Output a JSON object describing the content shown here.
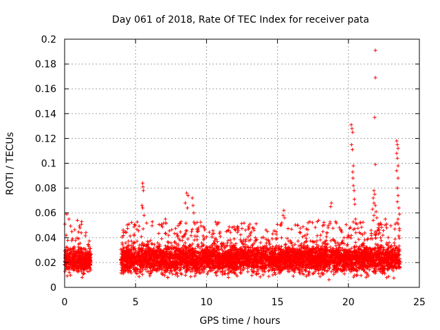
{
  "chart_data": {
    "type": "scatter",
    "title": "Day 061 of 2018, Rate Of TEC Index for receiver pata",
    "xlabel": "GPS time / hours",
    "ylabel": "ROTI / TECUs",
    "xlim": [
      0,
      25
    ],
    "ylim": [
      0,
      0.2
    ],
    "xticks": [
      0,
      5,
      10,
      15,
      20,
      25
    ],
    "yticks": [
      0,
      0.02,
      0.04,
      0.06,
      0.08,
      0.1,
      0.12,
      0.14,
      0.16,
      0.18,
      0.2
    ],
    "xtick_labels": [
      "0",
      "5",
      "10",
      "15",
      "20",
      "25"
    ],
    "ytick_labels": [
      "0",
      "0.02",
      "0.04",
      "0.06",
      "0.08",
      "0.1",
      "0.12",
      "0.14",
      "0.16",
      "0.18",
      "0.2"
    ],
    "grid": true,
    "marker": "+",
    "color": "#ff0000",
    "series": [
      {
        "name": "ROTI",
        "segments": [
          {
            "start": 0.0,
            "end": 1.85,
            "base": 0.022,
            "spread": 0.012
          },
          {
            "start": 3.95,
            "end": 23.65,
            "base": 0.023,
            "spread": 0.013
          }
        ],
        "peaks": [
          {
            "x": 0.15,
            "y": 0.059
          },
          {
            "x": 0.3,
            "y": 0.055
          },
          {
            "x": 0.9,
            "y": 0.054
          },
          {
            "x": 1.2,
            "y": 0.053
          },
          {
            "x": 5.5,
            "y": 0.084
          },
          {
            "x": 5.52,
            "y": 0.081
          },
          {
            "x": 5.55,
            "y": 0.078
          },
          {
            "x": 5.45,
            "y": 0.066
          },
          {
            "x": 5.5,
            "y": 0.064
          },
          {
            "x": 5.6,
            "y": 0.058
          },
          {
            "x": 7.1,
            "y": 0.055
          },
          {
            "x": 8.6,
            "y": 0.076
          },
          {
            "x": 8.7,
            "y": 0.074
          },
          {
            "x": 8.5,
            "y": 0.068
          },
          {
            "x": 8.65,
            "y": 0.064
          },
          {
            "x": 9.0,
            "y": 0.072
          },
          {
            "x": 9.05,
            "y": 0.066
          },
          {
            "x": 9.1,
            "y": 0.06
          },
          {
            "x": 8.2,
            "y": 0.053
          },
          {
            "x": 11.4,
            "y": 0.045
          },
          {
            "x": 12.2,
            "y": 0.049
          },
          {
            "x": 15.45,
            "y": 0.062
          },
          {
            "x": 15.4,
            "y": 0.058
          },
          {
            "x": 15.5,
            "y": 0.056
          },
          {
            "x": 15.3,
            "y": 0.052
          },
          {
            "x": 17.9,
            "y": 0.054
          },
          {
            "x": 18.8,
            "y": 0.068
          },
          {
            "x": 18.75,
            "y": 0.065
          },
          {
            "x": 19.1,
            "y": 0.053
          },
          {
            "x": 20.2,
            "y": 0.131
          },
          {
            "x": 20.25,
            "y": 0.128
          },
          {
            "x": 20.3,
            "y": 0.125
          },
          {
            "x": 20.22,
            "y": 0.115
          },
          {
            "x": 20.28,
            "y": 0.111
          },
          {
            "x": 20.35,
            "y": 0.098
          },
          {
            "x": 20.3,
            "y": 0.093
          },
          {
            "x": 20.32,
            "y": 0.088
          },
          {
            "x": 20.35,
            "y": 0.082
          },
          {
            "x": 20.4,
            "y": 0.078
          },
          {
            "x": 20.42,
            "y": 0.071
          },
          {
            "x": 20.45,
            "y": 0.067
          },
          {
            "x": 20.5,
            "y": 0.055
          },
          {
            "x": 20.6,
            "y": 0.051
          },
          {
            "x": 21.9,
            "y": 0.191
          },
          {
            "x": 21.9,
            "y": 0.169
          },
          {
            "x": 21.85,
            "y": 0.137
          },
          {
            "x": 21.9,
            "y": 0.099
          },
          {
            "x": 21.8,
            "y": 0.078
          },
          {
            "x": 21.85,
            "y": 0.075
          },
          {
            "x": 21.75,
            "y": 0.072
          },
          {
            "x": 21.8,
            "y": 0.068
          },
          {
            "x": 21.9,
            "y": 0.066
          },
          {
            "x": 21.7,
            "y": 0.063
          },
          {
            "x": 21.95,
            "y": 0.061
          },
          {
            "x": 21.8,
            "y": 0.058
          },
          {
            "x": 22.0,
            "y": 0.056
          },
          {
            "x": 21.75,
            "y": 0.054
          },
          {
            "x": 22.1,
            "y": 0.051
          },
          {
            "x": 22.1,
            "y": 0.048
          },
          {
            "x": 21.6,
            "y": 0.046
          },
          {
            "x": 22.2,
            "y": 0.044
          },
          {
            "x": 22.6,
            "y": 0.055
          },
          {
            "x": 22.7,
            "y": 0.051
          },
          {
            "x": 23.4,
            "y": 0.118
          },
          {
            "x": 23.45,
            "y": 0.115
          },
          {
            "x": 23.5,
            "y": 0.112
          },
          {
            "x": 23.4,
            "y": 0.108
          },
          {
            "x": 23.45,
            "y": 0.104
          },
          {
            "x": 23.5,
            "y": 0.098
          },
          {
            "x": 23.4,
            "y": 0.094
          },
          {
            "x": 23.5,
            "y": 0.088
          },
          {
            "x": 23.45,
            "y": 0.08
          },
          {
            "x": 23.5,
            "y": 0.074
          },
          {
            "x": 23.45,
            "y": 0.069
          },
          {
            "x": 23.55,
            "y": 0.064
          },
          {
            "x": 23.6,
            "y": 0.059
          },
          {
            "x": 23.5,
            "y": 0.055
          },
          {
            "x": 23.3,
            "y": 0.051
          },
          {
            "x": 23.6,
            "y": 0.046
          }
        ]
      }
    ]
  }
}
